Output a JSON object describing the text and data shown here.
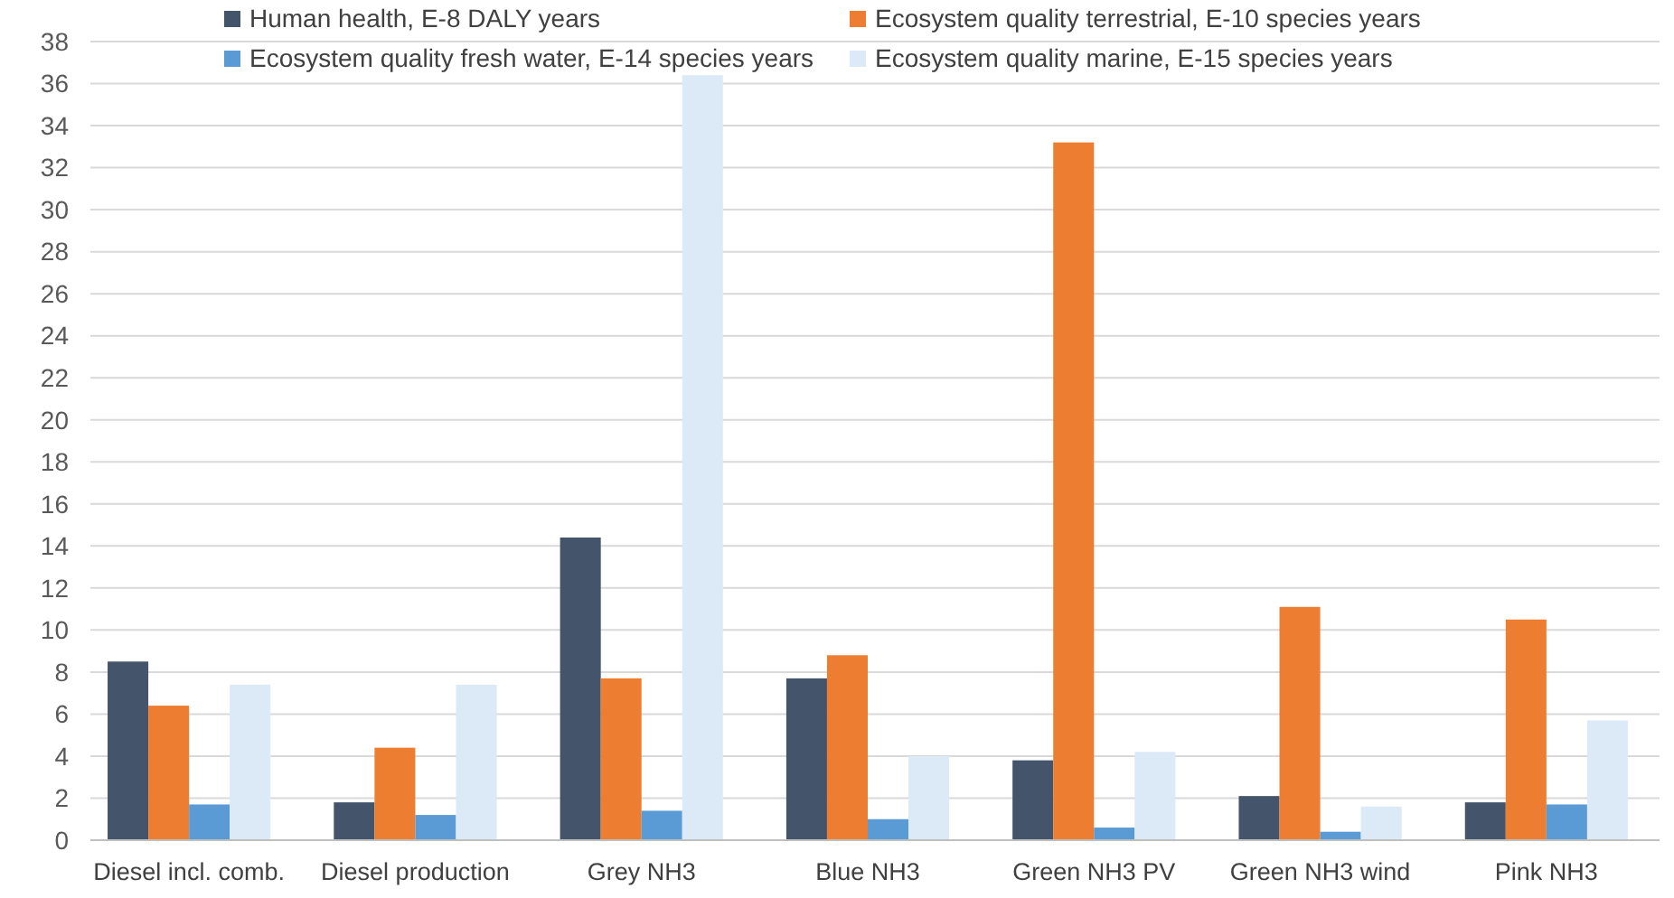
{
  "chart_data": {
    "type": "bar",
    "categories": [
      "Diesel incl. comb.",
      "Diesel production",
      "Grey NH3",
      "Blue NH3",
      "Green NH3 PV",
      "Green NH3 wind",
      "Pink NH3"
    ],
    "series": [
      {
        "name": "Human health, E-8 DALY years",
        "color": "#44546a",
        "values": [
          8.5,
          1.8,
          14.4,
          7.7,
          3.8,
          2.1,
          1.8
        ]
      },
      {
        "name": "Ecosystem quality terrestrial, E-10 species years",
        "color": "#ed7d31",
        "values": [
          6.4,
          4.4,
          7.7,
          8.8,
          33.2,
          11.1,
          10.5
        ]
      },
      {
        "name": "Ecosystem quality fresh water, E-14 species years",
        "color": "#5b9bd5",
        "values": [
          1.7,
          1.2,
          1.4,
          1.0,
          0.6,
          0.4,
          1.7
        ]
      },
      {
        "name": "Ecosystem quality marine, E-15 species years",
        "color": "#dce9f7",
        "values": [
          7.4,
          7.4,
          36.4,
          4.0,
          4.2,
          1.6,
          5.7
        ]
      }
    ],
    "ylim": [
      0,
      38
    ],
    "yticks": [
      0,
      2,
      4,
      6,
      8,
      10,
      12,
      14,
      16,
      18,
      20,
      22,
      24,
      26,
      28,
      30,
      32,
      34,
      36,
      38
    ],
    "grid": "y",
    "legend": "top"
  }
}
